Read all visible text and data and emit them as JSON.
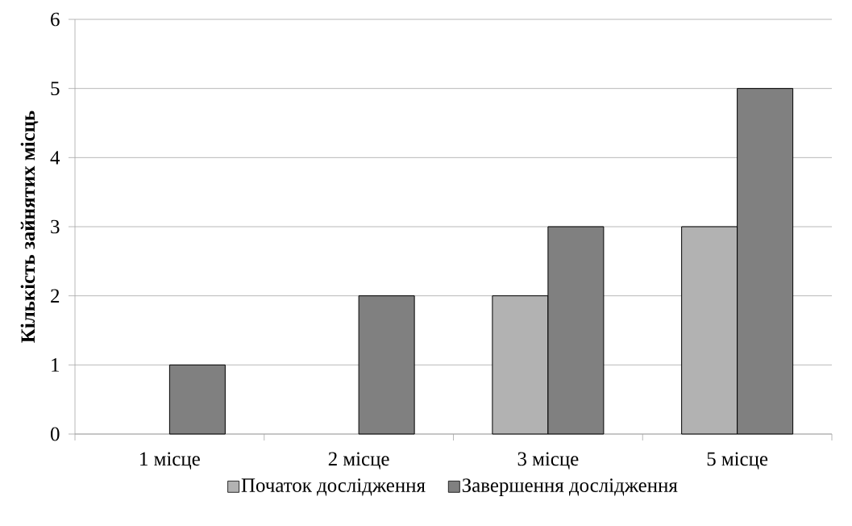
{
  "chart_data": {
    "type": "bar",
    "ylabel": "Кількість зайнятих місць",
    "categories": [
      "1 місце",
      "2 місце",
      "3 місце",
      "5 місце"
    ],
    "series": [
      {
        "name": "Початок дослідження",
        "color": "#b2b2b2",
        "values": [
          null,
          null,
          2,
          3
        ]
      },
      {
        "name": "Завершення дослідження",
        "color": "#808080",
        "values": [
          1,
          2,
          3,
          5
        ]
      }
    ],
    "ylim": [
      0,
      6
    ],
    "yticks": [
      0,
      1,
      2,
      3,
      4,
      5,
      6
    ],
    "grid": "y",
    "legend": "bottom"
  }
}
